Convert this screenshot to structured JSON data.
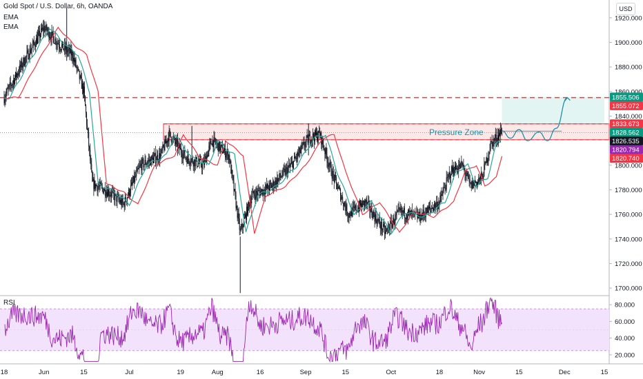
{
  "header": {
    "title": "Gold Spot / U.S. Dollar, 6h, OANDA",
    "indicator_1": "EMA",
    "indicator_2": "EMA"
  },
  "currency_button": "USD",
  "rsi_label": "RSI",
  "annotation": "Pressure Zone",
  "colors": {
    "candle": "#131722",
    "ema_fast": "#26a69a",
    "ema_slow": "#f23645",
    "resistance": "#f23645",
    "rsi_line": "#9c27b0",
    "rsi_band": "#f2e2fb",
    "zone_fill": "#fde8e8",
    "target_fill": "#e3f5f2",
    "projection": "#1e8fa6"
  },
  "chart_data": [
    {
      "type": "candlestick",
      "title": "Gold Spot / U.S. Dollar, 6h, OANDA",
      "ylim": [
        1695,
        1930
      ],
      "y_ticks": [
        "1920.000",
        "1900.000",
        "1880.000",
        "1860.000",
        "1840.000",
        "1820.000",
        "1800.000",
        "1780.000",
        "1760.000",
        "1740.000",
        "1720.000",
        "1700.000"
      ],
      "y_tick_values": [
        1920,
        1900,
        1880,
        1860,
        1840,
        1820,
        1800,
        1780,
        1760,
        1740,
        1720,
        1700
      ],
      "x_ticks": [
        "18",
        "Jun",
        "15",
        "Jul",
        "19",
        "Aug",
        "16",
        "Sep",
        "15",
        "Oct",
        "18",
        "Nov",
        "15",
        "Dec",
        "15"
      ],
      "x_tick_dates": [
        "2021-05-18",
        "2021-06-01",
        "2021-06-15",
        "2021-07-01",
        "2021-07-19",
        "2021-08-01",
        "2021-08-16",
        "2021-09-01",
        "2021-09-15",
        "2021-10-01",
        "2021-10-18",
        "2021-11-01",
        "2021-11-15",
        "2021-12-01",
        "2021-12-15"
      ],
      "price_path": [
        [
          "2021-05-18",
          1855
        ],
        [
          "2021-05-25",
          1885
        ],
        [
          "2021-06-01",
          1912
        ],
        [
          "2021-06-07",
          1897
        ],
        [
          "2021-06-11",
          1890
        ],
        [
          "2021-06-15",
          1860
        ],
        [
          "2021-06-18",
          1785
        ],
        [
          "2021-06-24",
          1778
        ],
        [
          "2021-06-29",
          1768
        ],
        [
          "2021-07-05",
          1800
        ],
        [
          "2021-07-12",
          1808
        ],
        [
          "2021-07-15",
          1825
        ],
        [
          "2021-07-21",
          1806
        ],
        [
          "2021-07-27",
          1800
        ],
        [
          "2021-07-30",
          1820
        ],
        [
          "2021-08-05",
          1808
        ],
        [
          "2021-08-09",
          1745
        ],
        [
          "2021-08-13",
          1775
        ],
        [
          "2021-08-20",
          1783
        ],
        [
          "2021-08-27",
          1800
        ],
        [
          "2021-09-02",
          1822
        ],
        [
          "2021-09-06",
          1825
        ],
        [
          "2021-09-10",
          1795
        ],
        [
          "2021-09-16",
          1760
        ],
        [
          "2021-09-22",
          1770
        ],
        [
          "2021-09-29",
          1745
        ],
        [
          "2021-10-04",
          1762
        ],
        [
          "2021-10-11",
          1758
        ],
        [
          "2021-10-18",
          1770
        ],
        [
          "2021-10-22",
          1795
        ],
        [
          "2021-10-26",
          1800
        ],
        [
          "2021-10-29",
          1783
        ],
        [
          "2021-11-02",
          1790
        ],
        [
          "2021-11-05",
          1817
        ],
        [
          "2021-11-09",
          1828
        ]
      ],
      "ema_fast_lag_days": 2,
      "ema_slow_lag_days": 5,
      "resistance_line": 1855.072,
      "pressure_zone": [
        1820.74,
        1833.673
      ],
      "projection_path": [
        [
          "2021-11-09",
          1828
        ],
        [
          "2021-11-12",
          1822
        ],
        [
          "2021-11-15",
          1829
        ],
        [
          "2021-11-18",
          1820
        ],
        [
          "2021-11-22",
          1827
        ],
        [
          "2021-11-25",
          1820
        ],
        [
          "2021-11-28",
          1830
        ],
        [
          "2021-12-02",
          1855
        ]
      ],
      "target_zone": {
        "from": "2021-11-09",
        "to": "2021-12-15",
        "low": 1828.562,
        "high": 1855.506
      },
      "price_tags": [
        {
          "value": 1855.506,
          "label": "1855.506",
          "color": "#089981"
        },
        {
          "value": 1855.072,
          "label": "1855.072",
          "color": "#f23645"
        },
        {
          "value": 1833.673,
          "label": "1833.673",
          "color": "#f23645"
        },
        {
          "value": 1828.562,
          "label": "1828.562",
          "color": "#089981"
        },
        {
          "value": 1826.535,
          "label": "1826.535",
          "color": "#131722"
        },
        {
          "value": 1820.794,
          "label": "1820.794",
          "color": "#9c27b0"
        },
        {
          "value": 1820.74,
          "label": "1820.740",
          "color": "#f23645"
        }
      ]
    },
    {
      "type": "line",
      "title": "RSI",
      "ylim": [
        10,
        90
      ],
      "y_ticks": [
        "80.000",
        "60.000",
        "40.000",
        "20.000"
      ],
      "y_tick_values": [
        80,
        60,
        40,
        20
      ],
      "band": [
        25,
        75
      ],
      "last_value": 65
    }
  ]
}
